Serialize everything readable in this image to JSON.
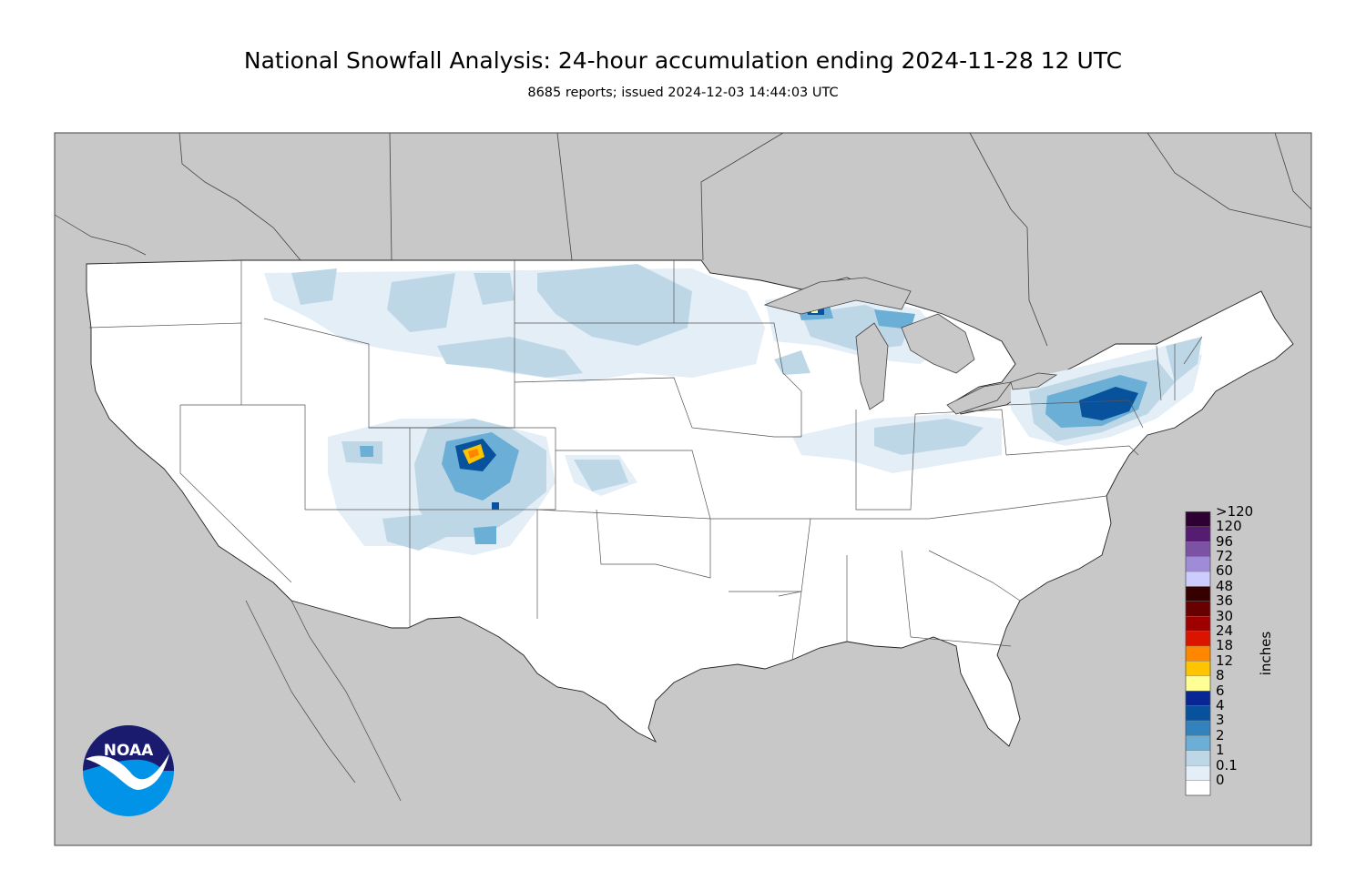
{
  "header": {
    "title": "National Snowfall Analysis: 24-hour accumulation ending 2024-11-28 12 UTC",
    "subtitle": "8685 reports; issued 2024-12-03 14:44:03 UTC"
  },
  "colorbar": {
    "units": "inches",
    "bins": [
      {
        "label": "0",
        "color": "#ffffff"
      },
      {
        "label": "0.1",
        "color": "#e3eef7"
      },
      {
        "label": "1",
        "color": "#bdd7e7"
      },
      {
        "label": "2",
        "color": "#6baed6"
      },
      {
        "label": "3",
        "color": "#3182bd"
      },
      {
        "label": "4",
        "color": "#08519c"
      },
      {
        "label": "6",
        "color": "#082694"
      },
      {
        "label": "8",
        "color": "#ffff96"
      },
      {
        "label": "12",
        "color": "#ffc400"
      },
      {
        "label": "18",
        "color": "#ff8700"
      },
      {
        "label": "24",
        "color": "#db1400"
      },
      {
        "label": "30",
        "color": "#9e0000"
      },
      {
        "label": "36",
        "color": "#690000"
      },
      {
        "label": "48",
        "color": "#360000"
      },
      {
        "label": "60",
        "color": "#ccccff"
      },
      {
        "label": "72",
        "color": "#9f8cd8"
      },
      {
        "label": "96",
        "color": "#7c52a5"
      },
      {
        "label": "120",
        "color": "#561c72"
      },
      {
        "label": ">120",
        "color": "#2e0033"
      }
    ]
  },
  "logo": {
    "text": "NOAA",
    "colors": {
      "top": "#1a1a6e",
      "bottom": "#0093e8",
      "bird": "#ffffff"
    }
  },
  "map": {
    "colors": {
      "land": "#ffffff",
      "outside": "#c8c8c8",
      "border": "#222222",
      "state_line": "#555555"
    }
  }
}
